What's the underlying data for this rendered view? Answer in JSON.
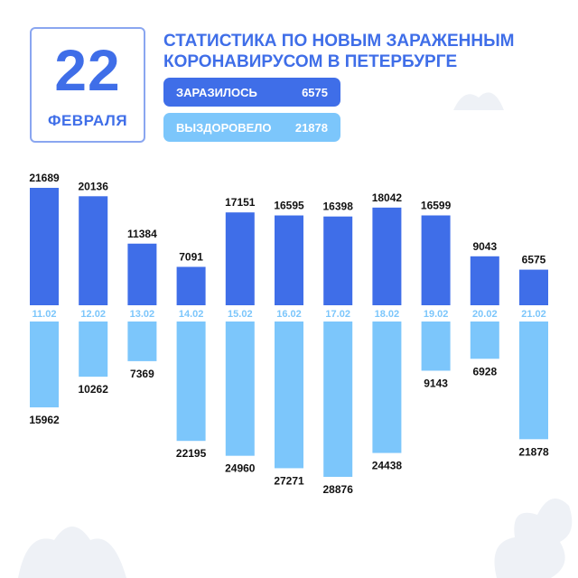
{
  "header": {
    "day": "22",
    "month": "ФЕВРАЛЯ",
    "title_line1": "СТАТИСТИКА ПО НОВЫМ ЗАРАЖЕННЫМ",
    "title_line2": "КОРОНАВИРУСОМ В ПЕТЕРБУРГЕ"
  },
  "legend": {
    "infected_label": "ЗАРАЗИЛОСЬ",
    "infected_value": "6575",
    "recovered_label": "ВЫЗДОРОВЕЛО",
    "recovered_value": "21878"
  },
  "colors": {
    "infected": "#3f6ee8",
    "recovered": "#7cc6fb",
    "label": "#111111",
    "decor": "#eef1f6"
  },
  "chart_data": {
    "type": "bar",
    "categories": [
      "11.02",
      "12.02",
      "13.02",
      "14.02",
      "15.02",
      "16.02",
      "17.02",
      "18.02",
      "19.02",
      "20.02",
      "21.02"
    ],
    "series": [
      {
        "name": "ЗАРАЗИЛОСЬ",
        "values": [
          21689,
          20136,
          11384,
          7091,
          17151,
          16595,
          16398,
          18042,
          16599,
          9043,
          6575
        ]
      },
      {
        "name": "ВЫЗДОРОВЕЛО",
        "values": [
          15962,
          10262,
          7369,
          22195,
          24960,
          27271,
          28876,
          24438,
          9143,
          6928,
          21878
        ]
      }
    ],
    "layout": "mirrored",
    "grid": false
  }
}
